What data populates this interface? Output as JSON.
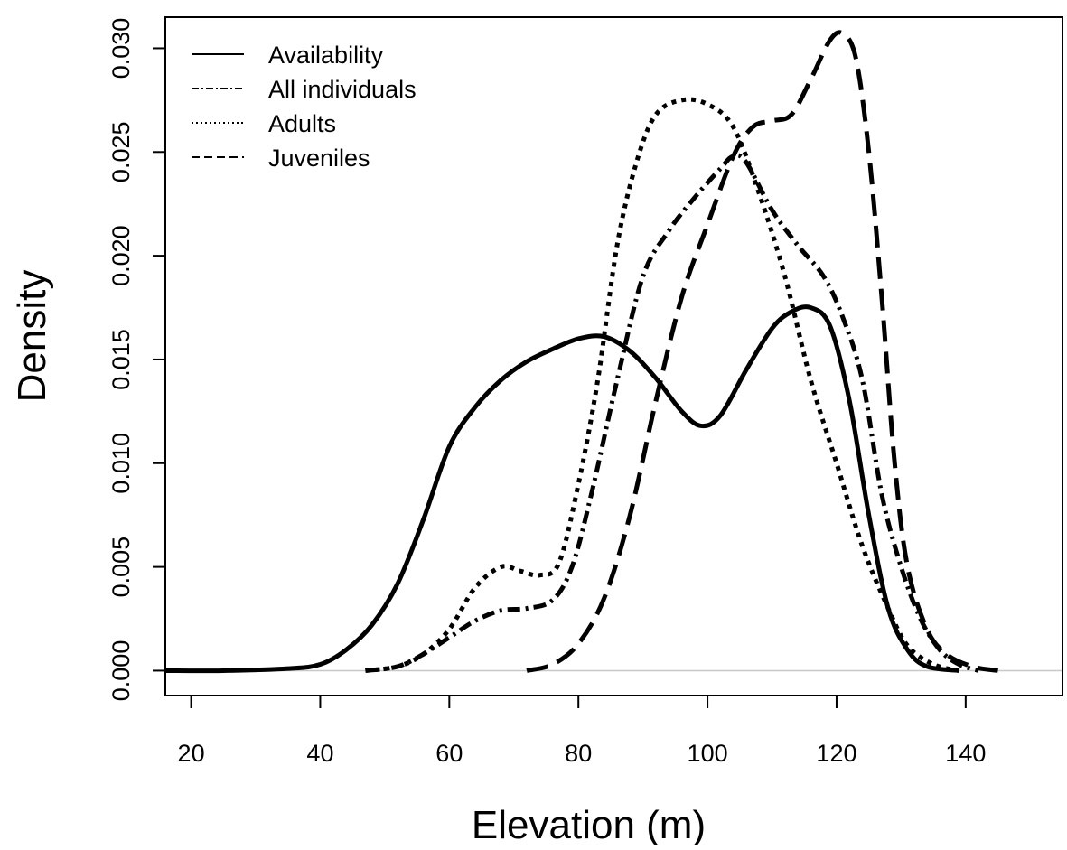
{
  "chart_data": {
    "type": "line",
    "title": "",
    "xlabel": "Elevation (m)",
    "ylabel": "Density",
    "xlim": [
      16,
      155
    ],
    "ylim": [
      -0.0012,
      0.0315
    ],
    "x_ticks": [
      20,
      40,
      60,
      80,
      100,
      120,
      140
    ],
    "y_ticks": [
      0.0,
      0.005,
      0.01,
      0.015,
      0.02,
      0.025,
      0.03
    ],
    "y_tick_labels": [
      "0.000",
      "0.005",
      "0.010",
      "0.015",
      "0.020",
      "0.025",
      "0.030"
    ],
    "grid": false,
    "zero_reference_line": true,
    "legend_position": "top-left",
    "series": [
      {
        "name": "Availability",
        "style": "solid",
        "color": "#000000",
        "points": [
          [
            16,
            0.0
          ],
          [
            25,
            0.0
          ],
          [
            35,
            0.0001
          ],
          [
            40,
            0.0003
          ],
          [
            44,
            0.001
          ],
          [
            48,
            0.0022
          ],
          [
            52,
            0.0042
          ],
          [
            56,
            0.0073
          ],
          [
            60,
            0.0108
          ],
          [
            64,
            0.0127
          ],
          [
            68,
            0.014
          ],
          [
            72,
            0.0149
          ],
          [
            76,
            0.0155
          ],
          [
            80,
            0.016
          ],
          [
            84,
            0.0161
          ],
          [
            88,
            0.0154
          ],
          [
            92,
            0.0141
          ],
          [
            96,
            0.0125
          ],
          [
            99,
            0.0118
          ],
          [
            102,
            0.0123
          ],
          [
            106,
            0.0145
          ],
          [
            110,
            0.0165
          ],
          [
            113,
            0.0173
          ],
          [
            116,
            0.0175
          ],
          [
            119,
            0.0166
          ],
          [
            122,
            0.013
          ],
          [
            125,
            0.0075
          ],
          [
            128,
            0.003
          ],
          [
            131,
            0.001
          ],
          [
            134,
            0.0002
          ],
          [
            139,
            0.0
          ]
        ]
      },
      {
        "name": "All individuals",
        "style": "dashdot",
        "color": "#000000",
        "points": [
          [
            47,
            0.0
          ],
          [
            52,
            0.0002
          ],
          [
            56,
            0.0008
          ],
          [
            60,
            0.0016
          ],
          [
            64,
            0.0024
          ],
          [
            68,
            0.0029
          ],
          [
            72,
            0.003
          ],
          [
            76,
            0.0034
          ],
          [
            79,
            0.005
          ],
          [
            82,
            0.0085
          ],
          [
            86,
            0.014
          ],
          [
            90,
            0.019
          ],
          [
            94,
            0.0212
          ],
          [
            98,
            0.0228
          ],
          [
            102,
            0.0242
          ],
          [
            104,
            0.0248
          ],
          [
            106,
            0.0245
          ],
          [
            110,
            0.0222
          ],
          [
            114,
            0.0205
          ],
          [
            118,
            0.019
          ],
          [
            121,
            0.017
          ],
          [
            124,
            0.014
          ],
          [
            127,
            0.0085
          ],
          [
            130,
            0.005
          ],
          [
            133,
            0.0025
          ],
          [
            136,
            0.001
          ],
          [
            139,
            0.0003
          ],
          [
            142,
            0.0
          ]
        ]
      },
      {
        "name": "Adults",
        "style": "dotted",
        "color": "#000000",
        "points": [
          [
            47,
            0.0
          ],
          [
            52,
            0.0002
          ],
          [
            56,
            0.0008
          ],
          [
            60,
            0.002
          ],
          [
            64,
            0.004
          ],
          [
            68,
            0.005
          ],
          [
            71,
            0.0048
          ],
          [
            74,
            0.0046
          ],
          [
            77,
            0.0052
          ],
          [
            80,
            0.009
          ],
          [
            83,
            0.014
          ],
          [
            86,
            0.0205
          ],
          [
            89,
            0.0245
          ],
          [
            92,
            0.0268
          ],
          [
            96,
            0.0275
          ],
          [
            100,
            0.0273
          ],
          [
            104,
            0.0262
          ],
          [
            108,
            0.023
          ],
          [
            112,
            0.019
          ],
          [
            116,
            0.014
          ],
          [
            120,
            0.01
          ],
          [
            124,
            0.006
          ],
          [
            128,
            0.003
          ],
          [
            131,
            0.0012
          ],
          [
            135,
            0.0003
          ],
          [
            139,
            0.0
          ]
        ]
      },
      {
        "name": "Juveniles",
        "style": "dashed",
        "color": "#000000",
        "points": [
          [
            72,
            0.0
          ],
          [
            76,
            0.0003
          ],
          [
            80,
            0.0013
          ],
          [
            84,
            0.0035
          ],
          [
            88,
            0.0075
          ],
          [
            92,
            0.013
          ],
          [
            96,
            0.018
          ],
          [
            100,
            0.0215
          ],
          [
            104,
            0.0248
          ],
          [
            107,
            0.0262
          ],
          [
            110,
            0.0265
          ],
          [
            113,
            0.0268
          ],
          [
            116,
            0.0285
          ],
          [
            119,
            0.0304
          ],
          [
            121,
            0.0307
          ],
          [
            123,
            0.0295
          ],
          [
            125,
            0.025
          ],
          [
            127,
            0.018
          ],
          [
            129,
            0.01
          ],
          [
            131,
            0.005
          ],
          [
            134,
            0.002
          ],
          [
            137,
            0.0008
          ],
          [
            141,
            0.0002
          ],
          [
            145,
            0.0
          ]
        ]
      }
    ]
  }
}
